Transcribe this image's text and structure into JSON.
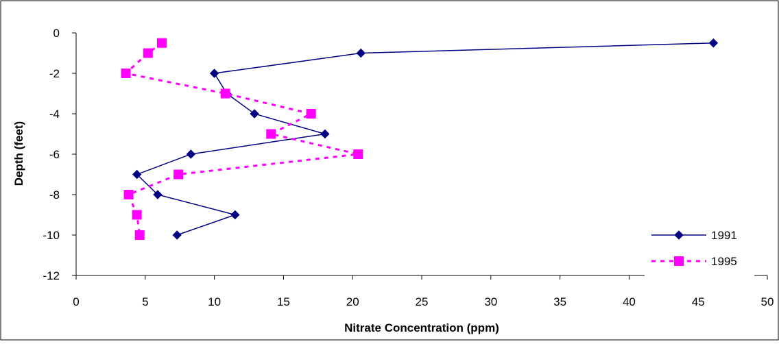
{
  "chart_data": {
    "type": "line",
    "title": "",
    "xlabel": "Nitrate Concentration (ppm)",
    "ylabel": "Depth (feet)",
    "xlim": [
      0,
      50
    ],
    "ylim": [
      -12,
      0
    ],
    "xticks": [
      0,
      5,
      10,
      15,
      20,
      25,
      30,
      35,
      40,
      45,
      50
    ],
    "yticks": [
      0,
      -2,
      -4,
      -6,
      -8,
      -10,
      -12
    ],
    "grid": false,
    "legend_position": "bottom-right",
    "series": [
      {
        "name": "1991",
        "color": "#000080",
        "line_style": "solid",
        "marker": "diamond",
        "points": [
          {
            "x": 46.1,
            "y": -0.5
          },
          {
            "x": 20.6,
            "y": -1
          },
          {
            "x": 10.0,
            "y": -2
          },
          {
            "x": 10.9,
            "y": -3
          },
          {
            "x": 12.9,
            "y": -4
          },
          {
            "x": 18.0,
            "y": -5
          },
          {
            "x": 8.3,
            "y": -6
          },
          {
            "x": 4.4,
            "y": -7
          },
          {
            "x": 5.9,
            "y": -8
          },
          {
            "x": 11.5,
            "y": -9
          },
          {
            "x": 7.3,
            "y": -10
          }
        ]
      },
      {
        "name": "1995",
        "color": "#ff00ff",
        "line_style": "dashed",
        "marker": "square",
        "points": [
          {
            "x": 6.2,
            "y": -0.5
          },
          {
            "x": 5.2,
            "y": -1
          },
          {
            "x": 3.6,
            "y": -2
          },
          {
            "x": 10.8,
            "y": -3
          },
          {
            "x": 17.0,
            "y": -4
          },
          {
            "x": 14.1,
            "y": -5
          },
          {
            "x": 20.4,
            "y": -6
          },
          {
            "x": 7.4,
            "y": -7
          },
          {
            "x": 3.8,
            "y": -8
          },
          {
            "x": 4.4,
            "y": -9
          },
          {
            "x": 4.6,
            "y": -10
          }
        ]
      }
    ]
  }
}
